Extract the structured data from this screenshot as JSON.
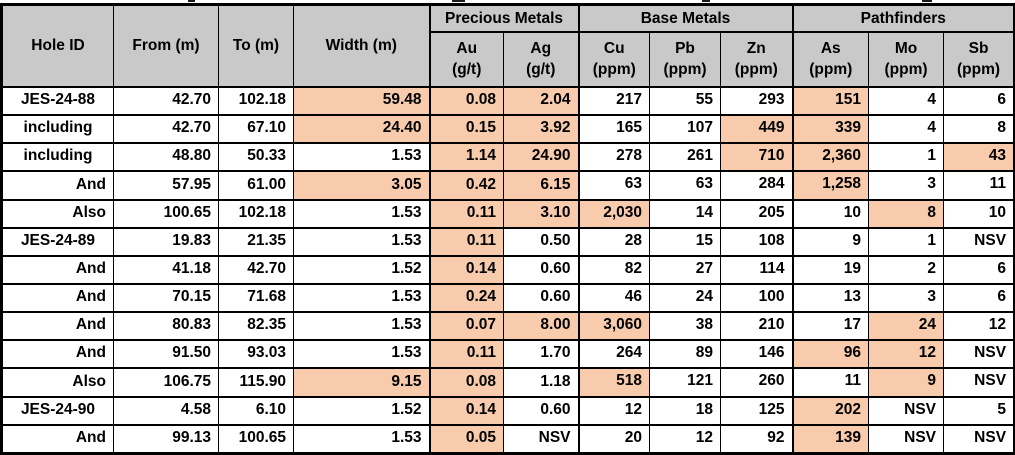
{
  "table": {
    "header_fill": "#C9C9C9",
    "highlight_fill": "#F8CBAD",
    "border_color": "#000000",
    "groups": [
      {
        "label": "Precious Metals",
        "span": 2
      },
      {
        "label": "Base Metals",
        "span": 3
      },
      {
        "label": "Pathfinders",
        "span": 3
      }
    ],
    "columns": [
      {
        "key": "hole",
        "label": "Hole ID",
        "sub": ""
      },
      {
        "key": "from",
        "label": "From (m)",
        "sub": ""
      },
      {
        "key": "to",
        "label": "To (m)",
        "sub": ""
      },
      {
        "key": "width",
        "label": "Width (m)",
        "sub": ""
      },
      {
        "key": "au",
        "label": "Au",
        "sub": "(g/t)"
      },
      {
        "key": "ag",
        "label": "Ag",
        "sub": "(g/t)"
      },
      {
        "key": "cu",
        "label": "Cu",
        "sub": "(ppm)"
      },
      {
        "key": "pb",
        "label": "Pb",
        "sub": "(ppm)"
      },
      {
        "key": "zn",
        "label": "Zn",
        "sub": "(ppm)"
      },
      {
        "key": "as",
        "label": "As",
        "sub": "(ppm)"
      },
      {
        "key": "mo",
        "label": "Mo",
        "sub": "(ppm)"
      },
      {
        "key": "sb",
        "label": "Sb",
        "sub": "(ppm)"
      }
    ],
    "group_start_columns": [
      4,
      6,
      9
    ],
    "rows": [
      {
        "cells": [
          "JES-24-88",
          "42.70",
          "102.18",
          "59.48",
          "0.08",
          "2.04",
          "217",
          "55",
          "293",
          "151",
          "4",
          "6"
        ],
        "hl": [
          3,
          4,
          5,
          9
        ],
        "hole_align": "center"
      },
      {
        "cells": [
          "including",
          "42.70",
          "67.10",
          "24.40",
          "0.15",
          "3.92",
          "165",
          "107",
          "449",
          "339",
          "4",
          "8"
        ],
        "hl": [
          3,
          4,
          5,
          8,
          9
        ],
        "hole_align": "center"
      },
      {
        "cells": [
          "including",
          "48.80",
          "50.33",
          "1.53",
          "1.14",
          "24.90",
          "278",
          "261",
          "710",
          "2,360",
          "1",
          "43"
        ],
        "hl": [
          4,
          5,
          8,
          9,
          11
        ],
        "hole_align": "center"
      },
      {
        "cells": [
          "And",
          "57.95",
          "61.00",
          "3.05",
          "0.42",
          "6.15",
          "63",
          "63",
          "284",
          "1,258",
          "3",
          "11"
        ],
        "hl": [
          3,
          4,
          5,
          9
        ],
        "hole_align": "right"
      },
      {
        "cells": [
          "Also",
          "100.65",
          "102.18",
          "1.53",
          "0.11",
          "3.10",
          "2,030",
          "14",
          "205",
          "10",
          "8",
          "10"
        ],
        "hl": [
          4,
          5,
          6,
          10
        ],
        "hole_align": "right"
      },
      {
        "cells": [
          "JES-24-89",
          "19.83",
          "21.35",
          "1.53",
          "0.11",
          "0.50",
          "28",
          "15",
          "108",
          "9",
          "1",
          "NSV"
        ],
        "hl": [
          4
        ],
        "hole_align": "center"
      },
      {
        "cells": [
          "And",
          "41.18",
          "42.70",
          "1.52",
          "0.14",
          "0.60",
          "82",
          "27",
          "114",
          "19",
          "2",
          "6"
        ],
        "hl": [
          4
        ],
        "hole_align": "right"
      },
      {
        "cells": [
          "And",
          "70.15",
          "71.68",
          "1.53",
          "0.24",
          "0.60",
          "46",
          "24",
          "100",
          "13",
          "3",
          "6"
        ],
        "hl": [
          4
        ],
        "hole_align": "right"
      },
      {
        "cells": [
          "And",
          "80.83",
          "82.35",
          "1.53",
          "0.07",
          "8.00",
          "3,060",
          "38",
          "210",
          "17",
          "24",
          "12"
        ],
        "hl": [
          4,
          5,
          6,
          10
        ],
        "hole_align": "right"
      },
      {
        "cells": [
          "And",
          "91.50",
          "93.03",
          "1.53",
          "0.11",
          "1.70",
          "264",
          "89",
          "146",
          "96",
          "12",
          "NSV"
        ],
        "hl": [
          4,
          9,
          10
        ],
        "hole_align": "right"
      },
      {
        "cells": [
          "Also",
          "106.75",
          "115.90",
          "9.15",
          "0.08",
          "1.18",
          "518",
          "121",
          "260",
          "11",
          "9",
          "NSV"
        ],
        "hl": [
          3,
          4,
          6,
          10
        ],
        "hole_align": "right"
      },
      {
        "cells": [
          "JES-24-90",
          "4.58",
          "6.10",
          "1.52",
          "0.14",
          "0.60",
          "12",
          "18",
          "125",
          "202",
          "NSV",
          "5"
        ],
        "hl": [
          4,
          9
        ],
        "hole_align": "center"
      },
      {
        "cells": [
          "And",
          "99.13",
          "100.65",
          "1.53",
          "0.05",
          "NSV",
          "20",
          "12",
          "92",
          "139",
          "NSV",
          "NSV"
        ],
        "hl": [
          4,
          9
        ],
        "hole_align": "right"
      }
    ]
  }
}
